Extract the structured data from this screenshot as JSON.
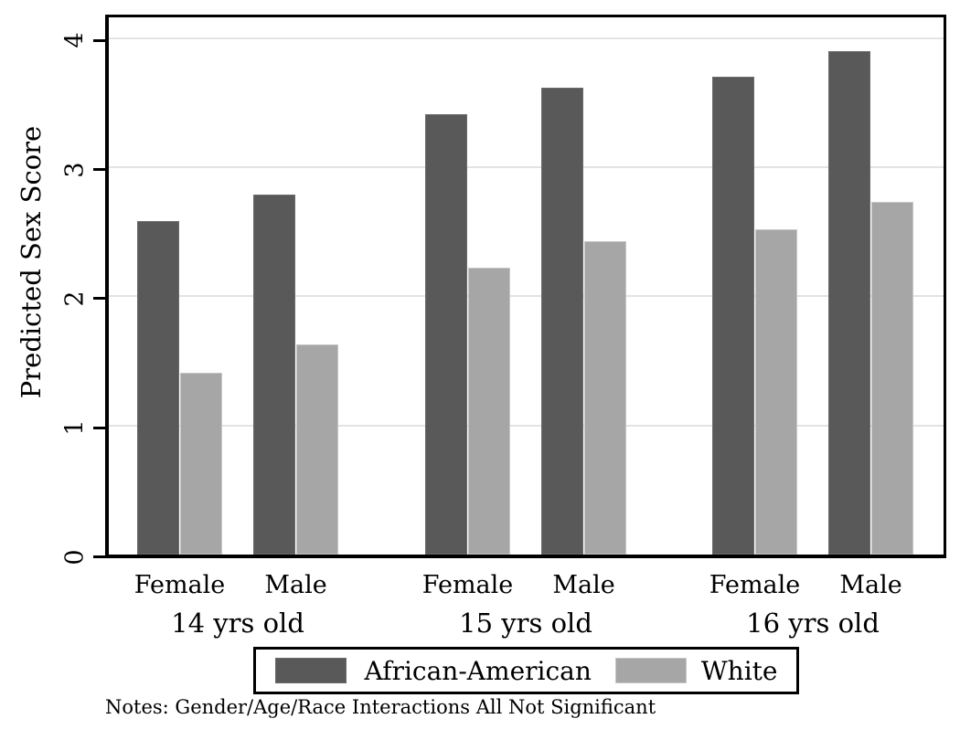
{
  "chart_data": {
    "type": "bar",
    "title": "",
    "ylabel": "Predicted Sex Score",
    "xlabel": "",
    "ylim": [
      0,
      4
    ],
    "yticks": [
      0,
      1,
      2,
      3,
      4
    ],
    "grid": "horizontal",
    "legend_position": "bottom-center-boxed",
    "subcategories": [
      "Female",
      "Male"
    ],
    "groups": [
      {
        "label": "14 yrs old",
        "bars": [
          {
            "sex": "Female",
            "african_american": 2.58,
            "white": 1.41
          },
          {
            "sex": "Male",
            "african_american": 2.79,
            "white": 1.63
          }
        ]
      },
      {
        "label": "15 yrs old",
        "bars": [
          {
            "sex": "Female",
            "african_american": 3.41,
            "white": 2.22
          },
          {
            "sex": "Male",
            "african_american": 3.62,
            "white": 2.43
          }
        ]
      },
      {
        "label": "16 yrs old",
        "bars": [
          {
            "sex": "Female",
            "african_american": 3.7,
            "white": 2.52
          },
          {
            "sex": "Male",
            "african_american": 3.9,
            "white": 2.73
          }
        ]
      }
    ],
    "legend": [
      {
        "label": "African-American",
        "color": "#595959"
      },
      {
        "label": "White",
        "color": "#a6a6a6"
      }
    ],
    "colors": {
      "african_american_fill": "#595959",
      "african_american_edge": "#6b6b6b",
      "white_fill": "#a6a6a6",
      "white_edge": "#c6c6c6",
      "gridline": "#e3e3e3",
      "axis": "#000000"
    },
    "notes": "Notes: Gender/Age/Race Interactions All Not Significant"
  }
}
